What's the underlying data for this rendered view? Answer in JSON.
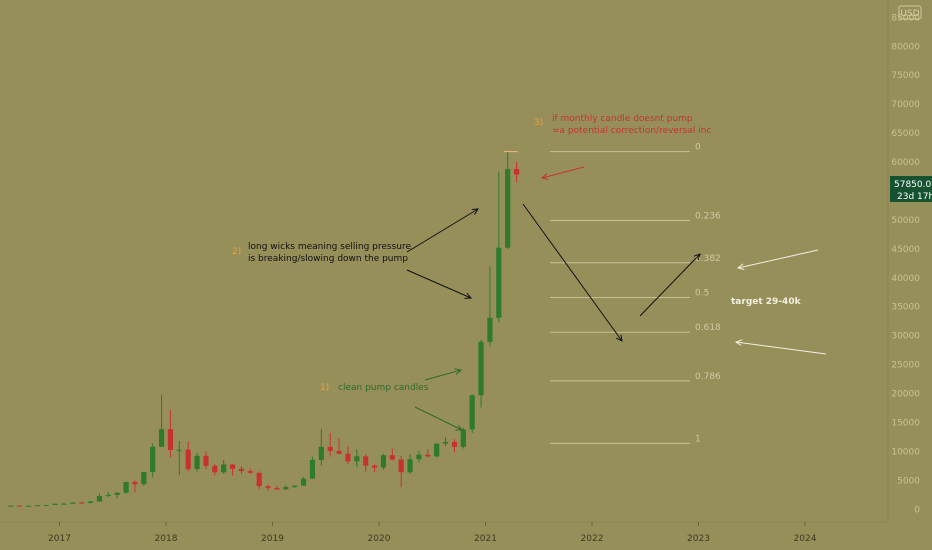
{
  "currency_badge": "USD",
  "price_tag": {
    "price": "57850.0",
    "countdown": "23d 17h",
    "bg": "#16522f"
  },
  "colors": {
    "up": "#2f7a2c",
    "down": "#c6332f",
    "background": "#978f5a",
    "fib_line": "#cfc9a0"
  },
  "chart_data": {
    "type": "candlestick",
    "interval": "monthly",
    "x_ticks": [
      "2017",
      "2018",
      "2019",
      "2020",
      "2021",
      "2022",
      "2023",
      "2024"
    ],
    "y_ticks": [
      0,
      5000,
      10000,
      15000,
      20000,
      25000,
      30000,
      35000,
      40000,
      45000,
      50000,
      55000,
      60000,
      65000,
      70000,
      75000,
      80000,
      85000
    ],
    "ylim": [
      -1500,
      88000
    ],
    "candles": [
      {
        "t": "2016-07",
        "o": 620,
        "h": 700,
        "l": 590,
        "c": 630
      },
      {
        "t": "2016-08",
        "o": 630,
        "h": 640,
        "l": 550,
        "c": 575
      },
      {
        "t": "2016-09",
        "o": 575,
        "h": 640,
        "l": 570,
        "c": 610
      },
      {
        "t": "2016-10",
        "o": 610,
        "h": 720,
        "l": 600,
        "c": 700
      },
      {
        "t": "2016-11",
        "o": 700,
        "h": 760,
        "l": 690,
        "c": 745
      },
      {
        "t": "2016-12",
        "o": 745,
        "h": 980,
        "l": 740,
        "c": 965
      },
      {
        "t": "2017-01",
        "o": 965,
        "h": 1150,
        "l": 780,
        "c": 970
      },
      {
        "t": "2017-02",
        "o": 970,
        "h": 1200,
        "l": 930,
        "c": 1190
      },
      {
        "t": "2017-03",
        "o": 1190,
        "h": 1350,
        "l": 890,
        "c": 1080
      },
      {
        "t": "2017-04",
        "o": 1080,
        "h": 1420,
        "l": 1070,
        "c": 1350
      },
      {
        "t": "2017-05",
        "o": 1350,
        "h": 2760,
        "l": 1340,
        "c": 2300
      },
      {
        "t": "2017-06",
        "o": 2300,
        "h": 3000,
        "l": 2100,
        "c": 2480
      },
      {
        "t": "2017-07",
        "o": 2480,
        "h": 2950,
        "l": 1840,
        "c": 2870
      },
      {
        "t": "2017-08",
        "o": 2870,
        "h": 4750,
        "l": 2700,
        "c": 4730
      },
      {
        "t": "2017-09",
        "o": 4730,
        "h": 5000,
        "l": 2970,
        "c": 4340
      },
      {
        "t": "2017-10",
        "o": 4340,
        "h": 6450,
        "l": 4100,
        "c": 6450
      },
      {
        "t": "2017-11",
        "o": 6450,
        "h": 11400,
        "l": 5500,
        "c": 10800
      },
      {
        "t": "2017-12",
        "o": 10800,
        "h": 19800,
        "l": 10800,
        "c": 13850
      },
      {
        "t": "2018-01",
        "o": 13850,
        "h": 17200,
        "l": 9000,
        "c": 10250
      },
      {
        "t": "2018-02",
        "o": 10250,
        "h": 11800,
        "l": 5900,
        "c": 10300
      },
      {
        "t": "2018-03",
        "o": 10300,
        "h": 11700,
        "l": 6600,
        "c": 6950
      },
      {
        "t": "2018-04",
        "o": 6950,
        "h": 9800,
        "l": 6500,
        "c": 9250
      },
      {
        "t": "2018-05",
        "o": 9250,
        "h": 9990,
        "l": 7000,
        "c": 7500
      },
      {
        "t": "2018-06",
        "o": 7500,
        "h": 7800,
        "l": 5750,
        "c": 6400
      },
      {
        "t": "2018-07",
        "o": 6400,
        "h": 8500,
        "l": 6100,
        "c": 7750
      },
      {
        "t": "2018-08",
        "o": 7750,
        "h": 7800,
        "l": 5850,
        "c": 7000
      },
      {
        "t": "2018-09",
        "o": 7000,
        "h": 7400,
        "l": 6100,
        "c": 6600
      },
      {
        "t": "2018-10",
        "o": 6600,
        "h": 7000,
        "l": 6200,
        "c": 6300
      },
      {
        "t": "2018-11",
        "o": 6300,
        "h": 6550,
        "l": 3500,
        "c": 4000
      },
      {
        "t": "2018-12",
        "o": 4000,
        "h": 4300,
        "l": 3150,
        "c": 3700
      },
      {
        "t": "2019-01",
        "o": 3700,
        "h": 4100,
        "l": 3350,
        "c": 3450
      },
      {
        "t": "2019-02",
        "o": 3450,
        "h": 4200,
        "l": 3400,
        "c": 3850
      },
      {
        "t": "2019-03",
        "o": 3850,
        "h": 4100,
        "l": 3700,
        "c": 4100
      },
      {
        "t": "2019-04",
        "o": 4100,
        "h": 5600,
        "l": 4050,
        "c": 5300
      },
      {
        "t": "2019-05",
        "o": 5300,
        "h": 9100,
        "l": 5300,
        "c": 8550
      },
      {
        "t": "2019-06",
        "o": 8550,
        "h": 13900,
        "l": 7500,
        "c": 10800
      },
      {
        "t": "2019-07",
        "o": 10800,
        "h": 13200,
        "l": 9100,
        "c": 10100
      },
      {
        "t": "2019-08",
        "o": 10100,
        "h": 12300,
        "l": 9500,
        "c": 9600
      },
      {
        "t": "2019-09",
        "o": 9600,
        "h": 10900,
        "l": 7800,
        "c": 8300
      },
      {
        "t": "2019-10",
        "o": 8300,
        "h": 10400,
        "l": 7300,
        "c": 9150
      },
      {
        "t": "2019-11",
        "o": 9150,
        "h": 9500,
        "l": 6500,
        "c": 7550
      },
      {
        "t": "2019-12",
        "o": 7550,
        "h": 7750,
        "l": 6400,
        "c": 7200
      },
      {
        "t": "2020-01",
        "o": 7200,
        "h": 9600,
        "l": 6850,
        "c": 9350
      },
      {
        "t": "2020-02",
        "o": 9350,
        "h": 10500,
        "l": 8450,
        "c": 8600
      },
      {
        "t": "2020-03",
        "o": 8600,
        "h": 9200,
        "l": 3800,
        "c": 6400
      },
      {
        "t": "2020-04",
        "o": 6400,
        "h": 9500,
        "l": 6150,
        "c": 8650
      },
      {
        "t": "2020-05",
        "o": 8650,
        "h": 10100,
        "l": 8100,
        "c": 9450
      },
      {
        "t": "2020-06",
        "o": 9450,
        "h": 10400,
        "l": 8900,
        "c": 9150
      },
      {
        "t": "2020-07",
        "o": 9150,
        "h": 11450,
        "l": 8950,
        "c": 11350
      },
      {
        "t": "2020-08",
        "o": 11350,
        "h": 12500,
        "l": 10950,
        "c": 11650
      },
      {
        "t": "2020-09",
        "o": 11650,
        "h": 12100,
        "l": 9850,
        "c": 10800
      },
      {
        "t": "2020-10",
        "o": 10800,
        "h": 14100,
        "l": 10500,
        "c": 13800
      },
      {
        "t": "2020-11",
        "o": 13800,
        "h": 19900,
        "l": 13200,
        "c": 19700
      },
      {
        "t": "2020-12",
        "o": 19700,
        "h": 29300,
        "l": 17600,
        "c": 28950
      },
      {
        "t": "2021-01",
        "o": 28950,
        "h": 42000,
        "l": 28100,
        "c": 33100
      },
      {
        "t": "2021-02",
        "o": 33100,
        "h": 58300,
        "l": 32300,
        "c": 45200
      },
      {
        "t": "2021-03",
        "o": 45200,
        "h": 61800,
        "l": 44950,
        "c": 58800
      },
      {
        "t": "2021-04",
        "o": 58800,
        "h": 60000,
        "l": 56500,
        "c": 57850
      }
    ],
    "fib_levels": [
      {
        "label": "0",
        "value": 61800
      },
      {
        "label": "0.236",
        "value": 49900
      },
      {
        "label": "0.382",
        "value": 42600
      },
      {
        "label": "0.5",
        "value": 36600
      },
      {
        "label": "0.618",
        "value": 30600
      },
      {
        "label": "0.786",
        "value": 22200
      },
      {
        "label": "1",
        "value": 11400
      }
    ],
    "annotations": {
      "a1_num": "1)",
      "a1_text": "clean pump candles",
      "a2_num": "2)",
      "a2_text_1": "long wicks meaning selling pressure",
      "a2_text_2": "is breaking/slowing down the pump",
      "a3_num": "3)",
      "a3_text_1": "if monthly candle doesnt pump",
      "a3_text_2": "=a potential correction/reversal inc",
      "target": "target 29-40k"
    }
  }
}
